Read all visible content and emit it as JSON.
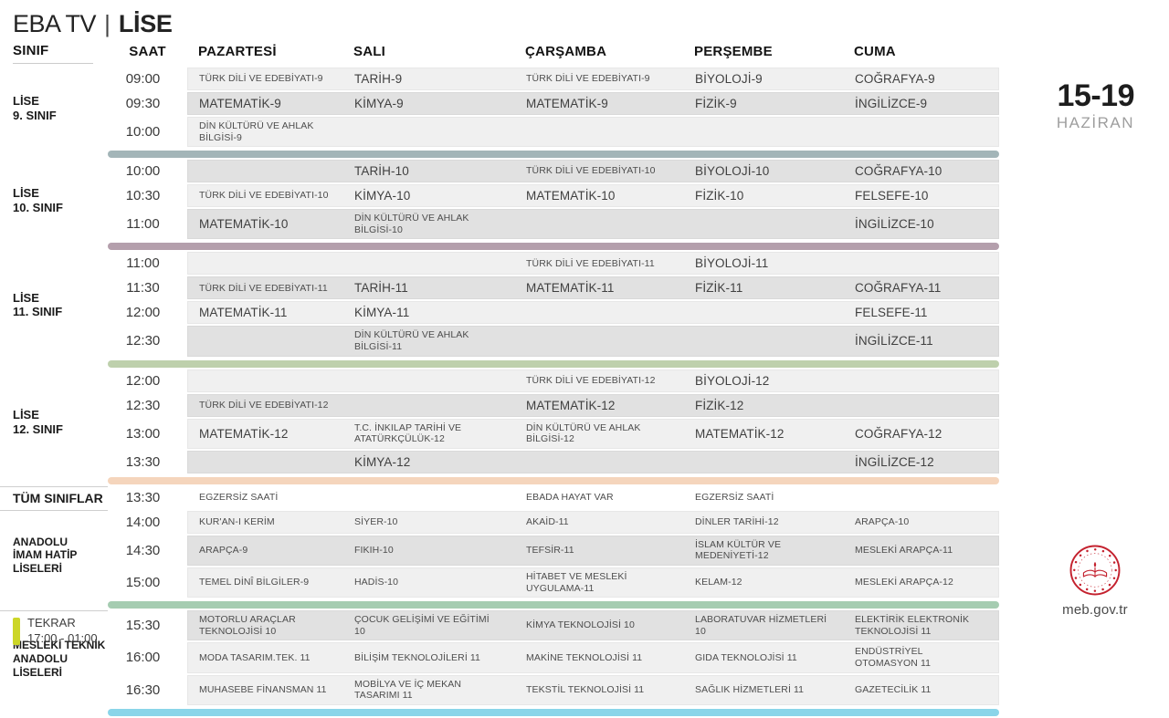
{
  "header": {
    "brand": "EBA TV",
    "divider": "|",
    "channel": "LİSE",
    "col_sinif": "SINIF",
    "col_saat": "SAAT",
    "days": [
      "PAZARTESİ",
      "SALI",
      "ÇARŞAMBA",
      "PERŞEMBE",
      "CUMA"
    ]
  },
  "date_badge": {
    "range": "15-19",
    "month": "HAZİRAN"
  },
  "colors": {
    "band_light": "#f0f0f0",
    "band_dark": "#e1e1e1",
    "repeat_marker": "#ccd628",
    "meb_red": "#c4212e"
  },
  "sections": [
    {
      "id": "lise-9",
      "label_lines": [
        "LİSE",
        "9. SINIF"
      ],
      "separator_color": "#a3b5b8",
      "small_text": false,
      "rows": [
        {
          "time": "09:00",
          "shade": "light",
          "cells": [
            "TÜRK DİLİ VE EDEBİYATI-9",
            "TARİH-9",
            "TÜRK DİLİ VE EDEBİYATI-9",
            "BİYOLOJİ-9",
            "COĞRAFYA-9"
          ]
        },
        {
          "time": "09:30",
          "shade": "dark",
          "cells": [
            "MATEMATİK-9",
            "KİMYA-9",
            "MATEMATİK-9",
            "FİZİK-9",
            "İNGİLİZCE-9"
          ]
        },
        {
          "time": "10:00",
          "shade": "light",
          "cells": [
            "DİN KÜLTÜRÜ VE AHLAK BİLGİSİ-9",
            "",
            "",
            "",
            ""
          ]
        }
      ]
    },
    {
      "id": "lise-10",
      "label_lines": [
        "LİSE",
        "10. SINIF"
      ],
      "separator_color": "#b49fac",
      "small_text": false,
      "rows": [
        {
          "time": "10:00",
          "shade": "dark",
          "cells": [
            "",
            "TARİH-10",
            "TÜRK DİLİ VE EDEBİYATI-10",
            "BİYOLOJİ-10",
            "COĞRAFYA-10"
          ]
        },
        {
          "time": "10:30",
          "shade": "light",
          "cells": [
            "TÜRK DİLİ VE EDEBİYATI-10",
            "KİMYA-10",
            "MATEMATİK-10",
            "FİZİK-10",
            "FELSEFE-10"
          ]
        },
        {
          "time": "11:00",
          "shade": "dark",
          "cells": [
            "MATEMATİK-10",
            "DİN KÜLTÜRÜ VE AHLAK BİLGİSİ-10",
            "",
            "",
            "İNGİLİZCE-10"
          ]
        }
      ]
    },
    {
      "id": "lise-11",
      "label_lines": [
        "LİSE",
        "11. SINIF"
      ],
      "separator_color": "#bed0ac",
      "small_text": false,
      "rows": [
        {
          "time": "11:00",
          "shade": "light",
          "cells": [
            "",
            "",
            "TÜRK DİLİ VE EDEBİYATI-11",
            "BİYOLOJİ-11",
            ""
          ]
        },
        {
          "time": "11:30",
          "shade": "dark",
          "cells": [
            "TÜRK DİLİ VE EDEBİYATI-11",
            "TARİH-11",
            "MATEMATİK-11",
            "FİZİK-11",
            "COĞRAFYA-11"
          ]
        },
        {
          "time": "12:00",
          "shade": "light",
          "cells": [
            "MATEMATİK-11",
            "KİMYA-11",
            "",
            "",
            "FELSEFE-11"
          ]
        },
        {
          "time": "12:30",
          "shade": "dark",
          "cells": [
            "",
            "DİN KÜLTÜRÜ VE AHLAK BİLGİSİ-11",
            "",
            "",
            "İNGİLİZCE-11"
          ]
        }
      ]
    },
    {
      "id": "lise-12",
      "label_lines": [
        "LİSE",
        "12. SINIF"
      ],
      "separator_color": "#f5d5bc",
      "small_text": false,
      "rows": [
        {
          "time": "12:00",
          "shade": "light",
          "cells": [
            "",
            "",
            "TÜRK DİLİ VE EDEBİYATI-12",
            "BİYOLOJİ-12",
            ""
          ]
        },
        {
          "time": "12:30",
          "shade": "dark",
          "cells": [
            "TÜRK DİLİ VE EDEBİYATI-12",
            "",
            "MATEMATİK-12",
            "FİZİK-12",
            ""
          ]
        },
        {
          "time": "13:00",
          "shade": "light",
          "cells": [
            "MATEMATİK-12",
            "T.C. İNKILAP TARİHİ VE ATATÜRKÇÜLÜK-12",
            "DİN KÜLTÜRÜ VE AHLAK BİLGİSİ-12",
            "MATEMATİK-12",
            "COĞRAFYA-12"
          ]
        },
        {
          "time": "13:30",
          "shade": "dark",
          "cells": [
            "",
            "KİMYA-12",
            "",
            "",
            "İNGİLİZCE-12"
          ]
        }
      ]
    },
    {
      "id": "tum-siniflar",
      "label_lines": [
        "TÜM SINIFLAR"
      ],
      "single_label": true,
      "divider_top": true,
      "divider_bottom": true,
      "small_text": true,
      "rows": [
        {
          "time": "13:30",
          "shade": "white",
          "cells": [
            "EGZERSİZ SAATİ",
            "",
            "EBADA HAYAT VAR",
            "EGZERSİZ SAATİ",
            ""
          ]
        }
      ]
    },
    {
      "id": "imam-hatip",
      "label_lines": [
        "ANADOLU",
        "İMAM HATİP",
        "LİSELERİ"
      ],
      "separator_color": "#a5ccb1",
      "small_text": true,
      "rows": [
        {
          "time": "14:00",
          "shade": "light",
          "cells": [
            "KUR'AN-I KERİM",
            "SİYER-10",
            "AKAİD-11",
            "DİNLER TARİHİ-12",
            "ARAPÇA-10"
          ]
        },
        {
          "time": "14:30",
          "shade": "dark",
          "cells": [
            "ARAPÇA-9",
            "FIKIH-10",
            "TEFSİR-11",
            "İSLAM KÜLTÜR VE MEDENİYETİ-12",
            "MESLEKİ ARAPÇA-11"
          ]
        },
        {
          "time": "15:00",
          "shade": "light",
          "cells": [
            "TEMEL DİNÎ BİLGİLER-9",
            "HADİS-10",
            "HİTABET VE MESLEKİ UYGULAMA-11",
            "KELAM-12",
            "MESLEKİ ARAPÇA-12"
          ]
        }
      ]
    },
    {
      "id": "mesleki-teknik",
      "label_lines": [
        "MESLEKİ TEKNİK",
        "ANADOLU",
        "LİSELERİ"
      ],
      "separator_color": "#8ad5e9",
      "small_text": true,
      "divider_top": true,
      "rows": [
        {
          "time": "15:30",
          "shade": "dark",
          "cells": [
            "MOTORLU ARAÇLAR TEKNOLOJİSİ 10",
            "ÇOCUK GELİŞİMİ VE EĞİTİMİ 10",
            "KİMYA TEKNOLOJİSİ 10",
            "LABORATUVAR HİZMETLERİ 10",
            "ELEKTİRİK ELEKTRONİK TEKNOLOJİSİ 11"
          ]
        },
        {
          "time": "16:00",
          "shade": "light",
          "cells": [
            "MODA TASARIM.TEK. 11",
            "BİLİŞİM TEKNOLOJİLERİ 11",
            "MAKİNE TEKNOLOJİSİ 11",
            "GIDA TEKNOLOJİSİ 11",
            "ENDÜSTRİYEL OTOMASYON 11"
          ]
        },
        {
          "time": "16:30",
          "shade": "light",
          "cells": [
            "MUHASEBE FİNANSMAN 11",
            "MOBİLYA VE İÇ MEKAN TASARIMI 11",
            "TEKSTİL TEKNOLOJİSİ 11",
            "SAĞLIK HİZMETLERİ 11",
            "GAZETECİLİK 11"
          ]
        }
      ]
    }
  ],
  "footer": {
    "repeat_label": "TEKRAR",
    "repeat_hours": "17:00 - 01:00",
    "website": "meb.gov.tr"
  }
}
